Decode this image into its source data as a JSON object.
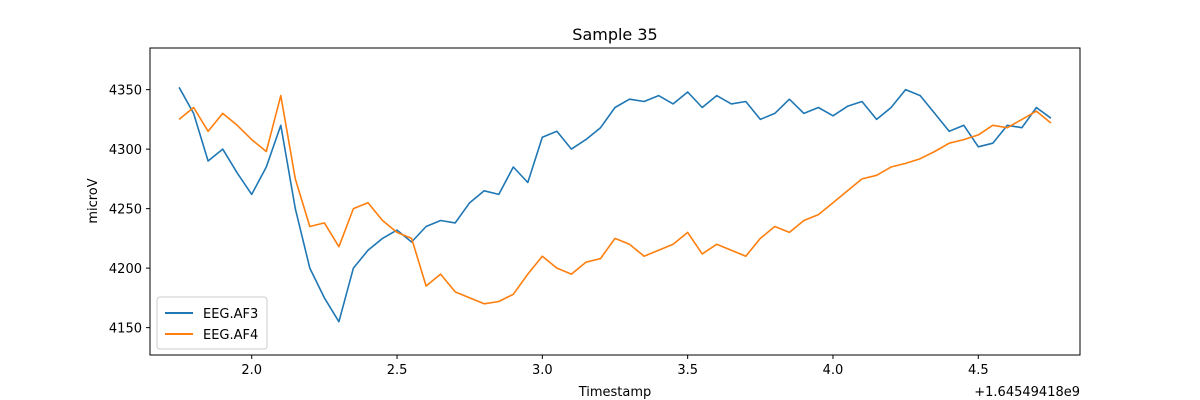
{
  "chart_data": {
    "type": "line",
    "title": "Sample 35",
    "xlabel": "Timestamp",
    "ylabel": "microV",
    "offset_text": "+1.64549418e9",
    "xlim": [
      1.65,
      4.85
    ],
    "ylim": [
      4127,
      4385
    ],
    "xticks": [
      2.0,
      2.5,
      3.0,
      3.5,
      4.0,
      4.5
    ],
    "xtick_labels": [
      "2.0",
      "2.5",
      "3.0",
      "3.5",
      "4.0",
      "4.5"
    ],
    "yticks": [
      4150,
      4200,
      4250,
      4300,
      4350
    ],
    "ytick_labels": [
      "4150",
      "4200",
      "4250",
      "4300",
      "4350"
    ],
    "legend_position": "lower-left",
    "grid": false,
    "series": [
      {
        "name": "EEG.AF3",
        "color": "#1f77b4",
        "x": [
          1.75,
          1.8,
          1.85,
          1.9,
          1.95,
          2.0,
          2.05,
          2.1,
          2.15,
          2.2,
          2.25,
          2.3,
          2.35,
          2.4,
          2.45,
          2.5,
          2.55,
          2.6,
          2.65,
          2.7,
          2.75,
          2.8,
          2.85,
          2.9,
          2.95,
          3.0,
          3.05,
          3.1,
          3.15,
          3.2,
          3.25,
          3.3,
          3.35,
          3.4,
          3.45,
          3.5,
          3.55,
          3.6,
          3.65,
          3.7,
          3.75,
          3.8,
          3.85,
          3.9,
          3.95,
          4.0,
          4.05,
          4.1,
          4.15,
          4.2,
          4.25,
          4.3,
          4.35,
          4.4,
          4.45,
          4.5,
          4.55,
          4.6,
          4.65,
          4.7,
          4.75
        ],
        "y": [
          4352,
          4330,
          4290,
          4300,
          4280,
          4262,
          4285,
          4320,
          4250,
          4200,
          4175,
          4155,
          4200,
          4215,
          4225,
          4232,
          4222,
          4235,
          4240,
          4238,
          4255,
          4265,
          4262,
          4285,
          4272,
          4310,
          4315,
          4300,
          4308,
          4318,
          4335,
          4342,
          4340,
          4345,
          4338,
          4348,
          4335,
          4345,
          4338,
          4340,
          4325,
          4330,
          4342,
          4330,
          4335,
          4328,
          4336,
          4340,
          4325,
          4335,
          4350,
          4345,
          4330,
          4315,
          4320,
          4302,
          4305,
          4320,
          4318,
          4335,
          4326
        ]
      },
      {
        "name": "EEG.AF4",
        "color": "#ff7f0e",
        "x": [
          1.75,
          1.8,
          1.85,
          1.9,
          1.95,
          2.0,
          2.05,
          2.1,
          2.15,
          2.2,
          2.25,
          2.3,
          2.35,
          2.4,
          2.45,
          2.5,
          2.55,
          2.6,
          2.65,
          2.7,
          2.75,
          2.8,
          2.85,
          2.9,
          2.95,
          3.0,
          3.05,
          3.1,
          3.15,
          3.2,
          3.25,
          3.3,
          3.35,
          3.4,
          3.45,
          3.5,
          3.55,
          3.6,
          3.65,
          3.7,
          3.75,
          3.8,
          3.85,
          3.9,
          3.95,
          4.0,
          4.05,
          4.1,
          4.15,
          4.2,
          4.25,
          4.3,
          4.35,
          4.4,
          4.45,
          4.5,
          4.55,
          4.6,
          4.65,
          4.7,
          4.75
        ],
        "y": [
          4325,
          4335,
          4315,
          4330,
          4320,
          4308,
          4298,
          4345,
          4275,
          4235,
          4238,
          4218,
          4250,
          4255,
          4240,
          4230,
          4225,
          4185,
          4195,
          4180,
          4175,
          4170,
          4172,
          4178,
          4195,
          4210,
          4200,
          4195,
          4205,
          4208,
          4225,
          4220,
          4210,
          4215,
          4220,
          4230,
          4212,
          4220,
          4215,
          4210,
          4225,
          4235,
          4230,
          4240,
          4245,
          4255,
          4265,
          4275,
          4278,
          4285,
          4288,
          4292,
          4298,
          4305,
          4308,
          4312,
          4320,
          4318,
          4325,
          4332,
          4322
        ]
      }
    ]
  }
}
